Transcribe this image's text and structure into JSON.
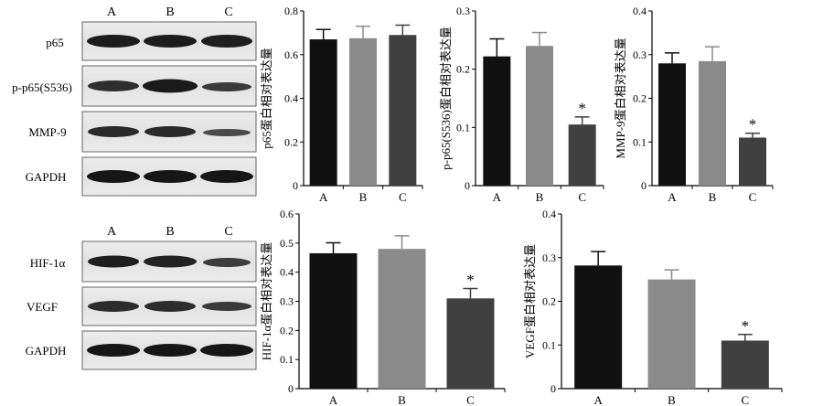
{
  "figure": {
    "blot_top": {
      "lanes": [
        "A",
        "B",
        "C"
      ],
      "rows": [
        "p65",
        "p-p65(S536)",
        "MMP-9",
        "GAPDH"
      ]
    },
    "blot_bottom": {
      "lanes": [
        "A",
        "B",
        "C"
      ],
      "rows": [
        "HIF-1α",
        "VEGF",
        "GAPDH"
      ]
    },
    "significance_marker": "*"
  },
  "chart_data": [
    {
      "type": "bar",
      "categories": [
        "A",
        "B",
        "C"
      ],
      "values": [
        0.67,
        0.675,
        0.69
      ],
      "errors": [
        0.045,
        0.055,
        0.045
      ],
      "significant": [
        false,
        false,
        false
      ],
      "ylabel": "p65蛋白相对表达量",
      "ylim": [
        0,
        0.8
      ],
      "yticks": [
        "0",
        "0.2",
        "0.4",
        "0.6",
        "0.8"
      ],
      "bar_colors": [
        "#111111",
        "#8a8a8a",
        "#404040"
      ]
    },
    {
      "type": "bar",
      "categories": [
        "A",
        "B",
        "C"
      ],
      "values": [
        0.222,
        0.24,
        0.105
      ],
      "errors": [
        0.03,
        0.023,
        0.013
      ],
      "significant": [
        false,
        false,
        true
      ],
      "ylabel": "p-p65(S536)蛋白相对表达量",
      "ylim": [
        0,
        0.3
      ],
      "yticks": [
        "0",
        "0.1",
        "0.2",
        "0.3"
      ],
      "bar_colors": [
        "#111111",
        "#8a8a8a",
        "#404040"
      ]
    },
    {
      "type": "bar",
      "categories": [
        "A",
        "B",
        "C"
      ],
      "values": [
        0.28,
        0.285,
        0.11
      ],
      "errors": [
        0.024,
        0.033,
        0.01
      ],
      "significant": [
        false,
        false,
        true
      ],
      "ylabel": "MMP-9蛋白相对表达量",
      "ylim": [
        0,
        0.4
      ],
      "yticks": [
        "0",
        "0.1",
        "0.2",
        "0.3",
        "0.4"
      ],
      "bar_colors": [
        "#111111",
        "#8a8a8a",
        "#404040"
      ]
    },
    {
      "type": "bar",
      "categories": [
        "A",
        "B",
        "C"
      ],
      "values": [
        0.465,
        0.48,
        0.31
      ],
      "errors": [
        0.036,
        0.045,
        0.034
      ],
      "significant": [
        false,
        false,
        true
      ],
      "ylabel": "HIF-1α蛋白相对表达量",
      "ylim": [
        0,
        0.6
      ],
      "yticks": [
        "0",
        "0.1",
        "0.2",
        "0.3",
        "0.4",
        "0.5",
        "0.6"
      ],
      "bar_colors": [
        "#111111",
        "#8a8a8a",
        "#404040"
      ]
    },
    {
      "type": "bar",
      "categories": [
        "A",
        "B",
        "C"
      ],
      "values": [
        0.282,
        0.25,
        0.11
      ],
      "errors": [
        0.032,
        0.022,
        0.014
      ],
      "significant": [
        false,
        false,
        true
      ],
      "ylabel": "VEGF蛋白相对表达量",
      "ylim": [
        0,
        0.4
      ],
      "yticks": [
        "0",
        "0.1",
        "0.2",
        "0.3",
        "0.4"
      ],
      "bar_colors": [
        "#111111",
        "#8a8a8a",
        "#404040"
      ]
    }
  ]
}
